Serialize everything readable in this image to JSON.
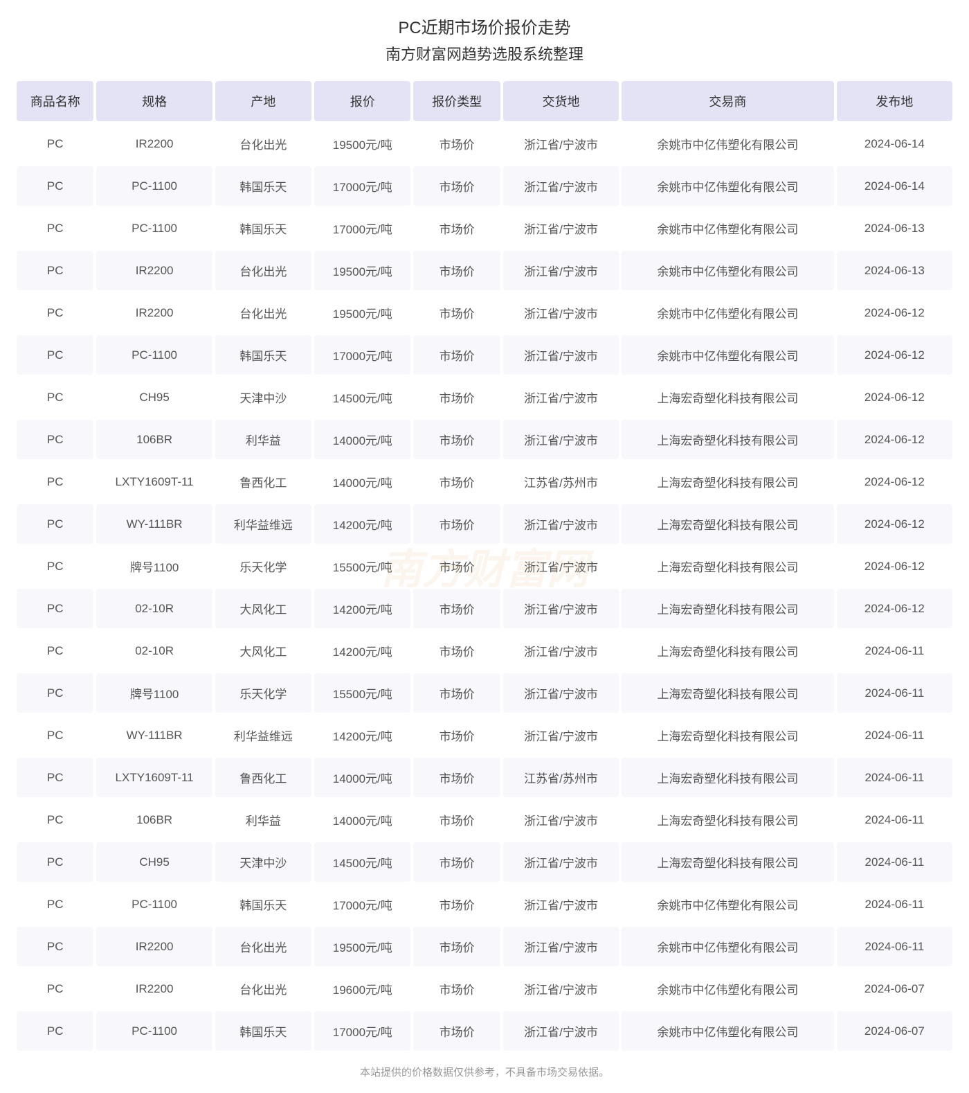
{
  "title": "PC近期市场价报价走势",
  "subtitle": "南方财富网趋势选股系统整理",
  "footer": "本站提供的价格数据仅供参考，不具备市场交易依据。",
  "watermark_text": "南方财富网",
  "colors": {
    "header_bg": "#e3e3f5",
    "row_odd_bg": "#ffffff",
    "row_even_bg": "#f7f7fc",
    "text_primary": "#333333",
    "text_secondary": "#555555",
    "text_muted": "#999999"
  },
  "columns": [
    "商品名称",
    "规格",
    "产地",
    "报价",
    "报价类型",
    "交货地",
    "交易商",
    "发布地"
  ],
  "rows": [
    [
      "PC",
      "IR2200",
      "台化出光",
      "19500元/吨",
      "市场价",
      "浙江省/宁波市",
      "余姚市中亿伟塑化有限公司",
      "2024-06-14"
    ],
    [
      "PC",
      "PC-1100",
      "韩国乐天",
      "17000元/吨",
      "市场价",
      "浙江省/宁波市",
      "余姚市中亿伟塑化有限公司",
      "2024-06-14"
    ],
    [
      "PC",
      "PC-1100",
      "韩国乐天",
      "17000元/吨",
      "市场价",
      "浙江省/宁波市",
      "余姚市中亿伟塑化有限公司",
      "2024-06-13"
    ],
    [
      "PC",
      "IR2200",
      "台化出光",
      "19500元/吨",
      "市场价",
      "浙江省/宁波市",
      "余姚市中亿伟塑化有限公司",
      "2024-06-13"
    ],
    [
      "PC",
      "IR2200",
      "台化出光",
      "19500元/吨",
      "市场价",
      "浙江省/宁波市",
      "余姚市中亿伟塑化有限公司",
      "2024-06-12"
    ],
    [
      "PC",
      "PC-1100",
      "韩国乐天",
      "17000元/吨",
      "市场价",
      "浙江省/宁波市",
      "余姚市中亿伟塑化有限公司",
      "2024-06-12"
    ],
    [
      "PC",
      "CH95",
      "天津中沙",
      "14500元/吨",
      "市场价",
      "浙江省/宁波市",
      "上海宏奇塑化科技有限公司",
      "2024-06-12"
    ],
    [
      "PC",
      "106BR",
      "利华益",
      "14000元/吨",
      "市场价",
      "浙江省/宁波市",
      "上海宏奇塑化科技有限公司",
      "2024-06-12"
    ],
    [
      "PC",
      "LXTY1609T-11",
      "鲁西化工",
      "14000元/吨",
      "市场价",
      "江苏省/苏州市",
      "上海宏奇塑化科技有限公司",
      "2024-06-12"
    ],
    [
      "PC",
      "WY-111BR",
      "利华益维远",
      "14200元/吨",
      "市场价",
      "浙江省/宁波市",
      "上海宏奇塑化科技有限公司",
      "2024-06-12"
    ],
    [
      "PC",
      "牌号1100",
      "乐天化学",
      "15500元/吨",
      "市场价",
      "浙江省/宁波市",
      "上海宏奇塑化科技有限公司",
      "2024-06-12"
    ],
    [
      "PC",
      "02-10R",
      "大风化工",
      "14200元/吨",
      "市场价",
      "浙江省/宁波市",
      "上海宏奇塑化科技有限公司",
      "2024-06-12"
    ],
    [
      "PC",
      "02-10R",
      "大风化工",
      "14200元/吨",
      "市场价",
      "浙江省/宁波市",
      "上海宏奇塑化科技有限公司",
      "2024-06-11"
    ],
    [
      "PC",
      "牌号1100",
      "乐天化学",
      "15500元/吨",
      "市场价",
      "浙江省/宁波市",
      "上海宏奇塑化科技有限公司",
      "2024-06-11"
    ],
    [
      "PC",
      "WY-111BR",
      "利华益维远",
      "14200元/吨",
      "市场价",
      "浙江省/宁波市",
      "上海宏奇塑化科技有限公司",
      "2024-06-11"
    ],
    [
      "PC",
      "LXTY1609T-11",
      "鲁西化工",
      "14000元/吨",
      "市场价",
      "江苏省/苏州市",
      "上海宏奇塑化科技有限公司",
      "2024-06-11"
    ],
    [
      "PC",
      "106BR",
      "利华益",
      "14000元/吨",
      "市场价",
      "浙江省/宁波市",
      "上海宏奇塑化科技有限公司",
      "2024-06-11"
    ],
    [
      "PC",
      "CH95",
      "天津中沙",
      "14500元/吨",
      "市场价",
      "浙江省/宁波市",
      "上海宏奇塑化科技有限公司",
      "2024-06-11"
    ],
    [
      "PC",
      "PC-1100",
      "韩国乐天",
      "17000元/吨",
      "市场价",
      "浙江省/宁波市",
      "余姚市中亿伟塑化有限公司",
      "2024-06-11"
    ],
    [
      "PC",
      "IR2200",
      "台化出光",
      "19500元/吨",
      "市场价",
      "浙江省/宁波市",
      "余姚市中亿伟塑化有限公司",
      "2024-06-11"
    ],
    [
      "PC",
      "IR2200",
      "台化出光",
      "19600元/吨",
      "市场价",
      "浙江省/宁波市",
      "余姚市中亿伟塑化有限公司",
      "2024-06-07"
    ],
    [
      "PC",
      "PC-1100",
      "韩国乐天",
      "17000元/吨",
      "市场价",
      "浙江省/宁波市",
      "余姚市中亿伟塑化有限公司",
      "2024-06-07"
    ]
  ]
}
